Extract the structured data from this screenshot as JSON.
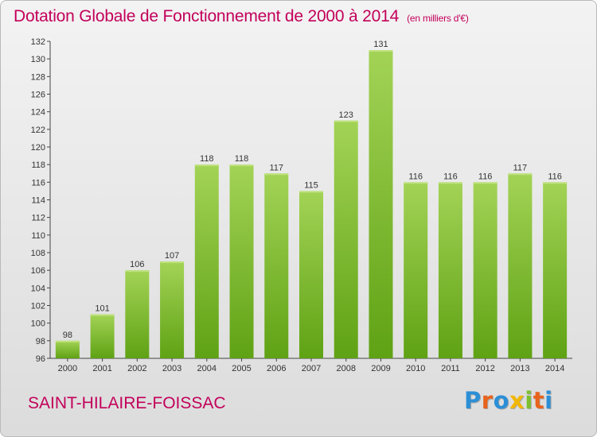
{
  "header": {
    "title": "Dotation Globale de Fonctionnement de 2000 à 2014",
    "unit": "(en milliers d'€)"
  },
  "footer": {
    "commune": "SAINT-HILAIRE-FOISSAC",
    "logo_text": "Proxiti",
    "logo_letters": [
      "P",
      "r",
      "o",
      "x",
      "i",
      "t",
      "i"
    ],
    "logo_colors": [
      "#2c8fd6",
      "#e8631c",
      "#2c8fd6",
      "#f2b705",
      "#7cbf2f",
      "#e8631c",
      "#2c8fd6"
    ]
  },
  "colors": {
    "accent": "#c3005a",
    "bar_light": "#a3d356",
    "bar_dark": "#5fa214"
  },
  "chart_data": {
    "type": "bar",
    "categories": [
      "2000",
      "2001",
      "2002",
      "2003",
      "2004",
      "2005",
      "2006",
      "2007",
      "2008",
      "2009",
      "2010",
      "2011",
      "2012",
      "2013",
      "2014"
    ],
    "values": [
      98,
      101,
      106,
      107,
      118,
      118,
      117,
      115,
      123,
      131,
      116,
      116,
      116,
      117,
      116
    ],
    "ylim": [
      96,
      132
    ],
    "yticks": [
      96,
      98,
      100,
      102,
      104,
      106,
      108,
      110,
      112,
      114,
      116,
      118,
      120,
      122,
      124,
      126,
      128,
      130,
      132
    ],
    "grid": false,
    "legend": "none"
  }
}
